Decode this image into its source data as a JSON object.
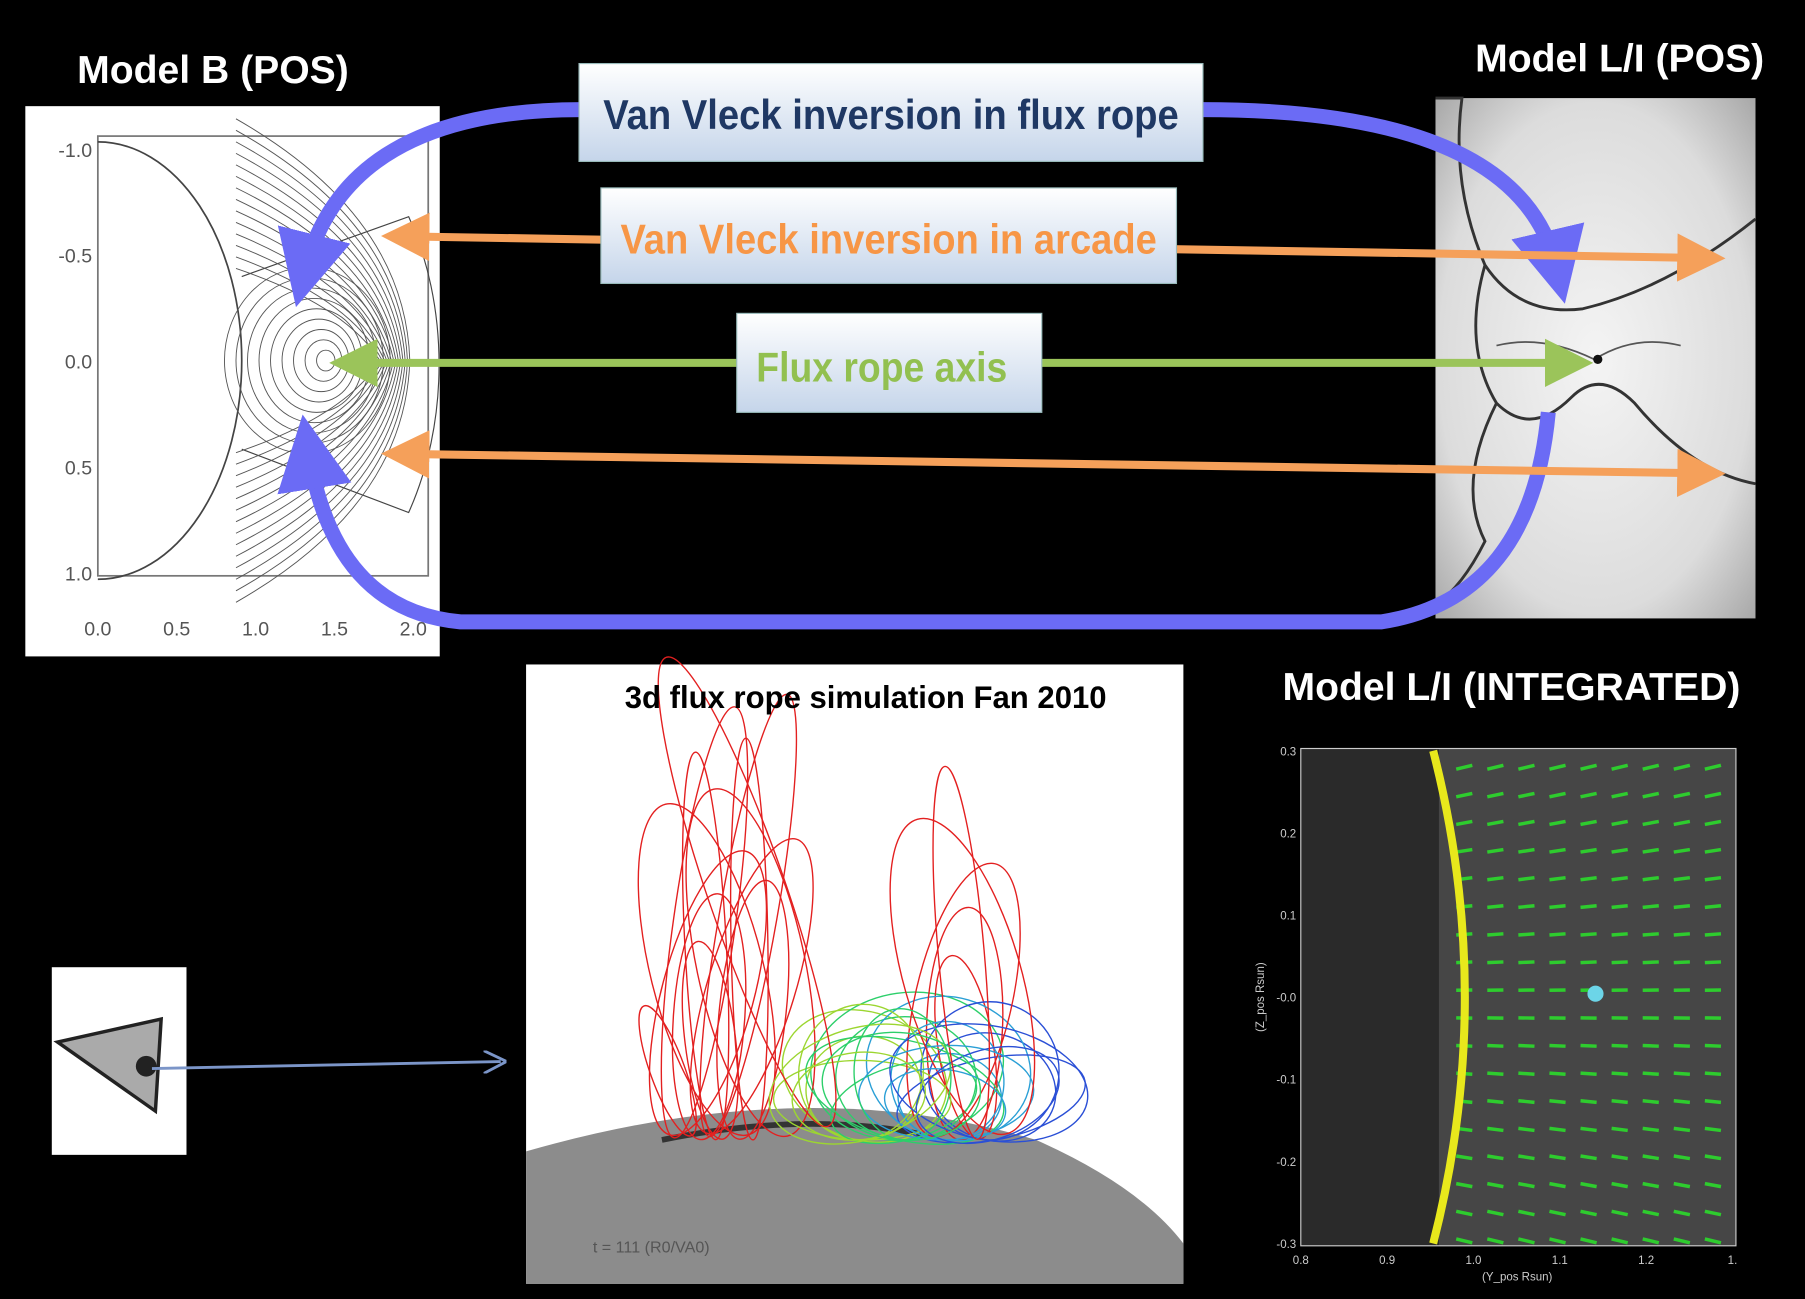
{
  "panels": {
    "model_b": {
      "title": "Model B (POS)",
      "yticks": [
        "-1.0",
        "-0.5",
        "0.0",
        "0.5",
        "1.0"
      ],
      "xticks": [
        "0.0",
        "0.5",
        "1.0",
        "1.5",
        "2.0"
      ]
    },
    "model_li_pos": {
      "title": "Model L/I (POS)"
    },
    "simulation": {
      "title": "3d flux rope simulation Fan 2010",
      "time_label": "t = 111 (R0/VA0)"
    },
    "model_li_integrated": {
      "title": "Model L/I (INTEGRATED)",
      "yticks": [
        "0.3",
        "0.2",
        "0.1",
        "-0.0",
        "-0.1",
        "-0.2",
        "-0.3"
      ],
      "xticks": [
        "0.8",
        "0.9",
        "1.0",
        "1.1",
        "1.2",
        "1."
      ],
      "xlabel": "(Y_pos Rsun)",
      "ylabel": "(Z_pos Rsun)"
    }
  },
  "labels": {
    "flux_rope": "Van Vleck inversion in flux rope",
    "arcade": "Van Vleck inversion in arcade",
    "axis": "Flux rope axis"
  }
}
